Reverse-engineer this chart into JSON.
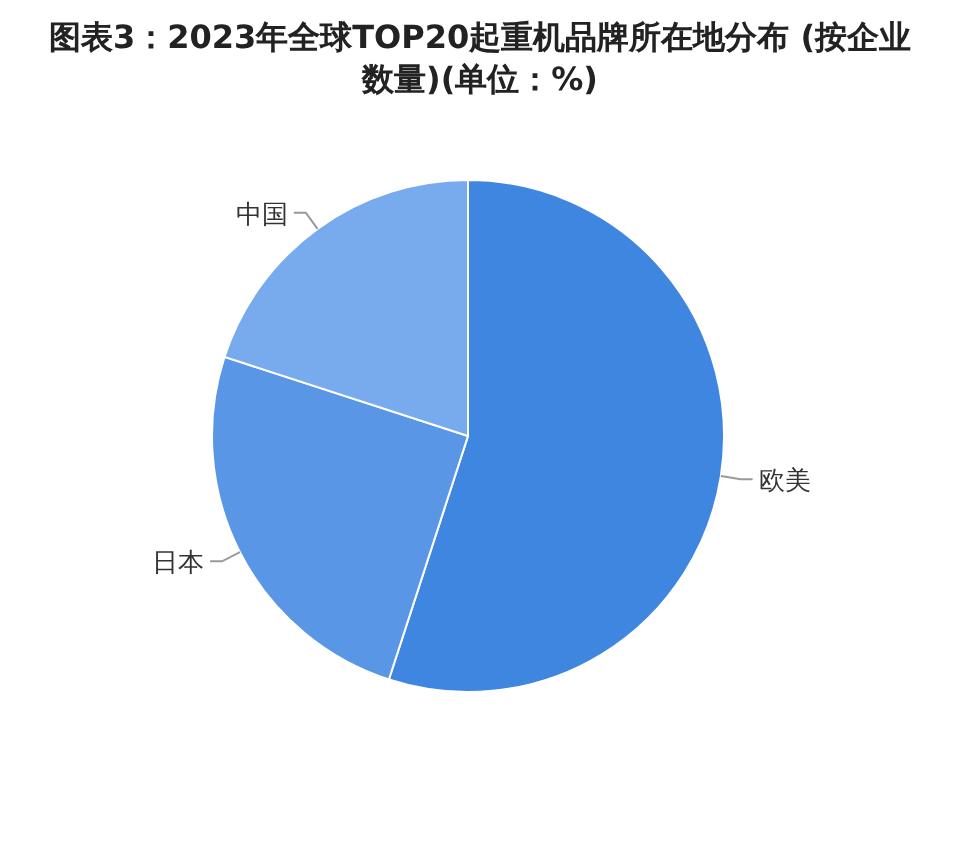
{
  "chart_data": {
    "type": "pie",
    "title": "图表3：2023年全球TOP20起重机品牌所在地分布 (按企业数量)(单位：%)",
    "categories": [
      "欧美",
      "日本",
      "中国"
    ],
    "values": [
      55,
      25,
      20
    ],
    "colors": [
      "#3f86e0",
      "#5a96e6",
      "#78aaee"
    ]
  }
}
